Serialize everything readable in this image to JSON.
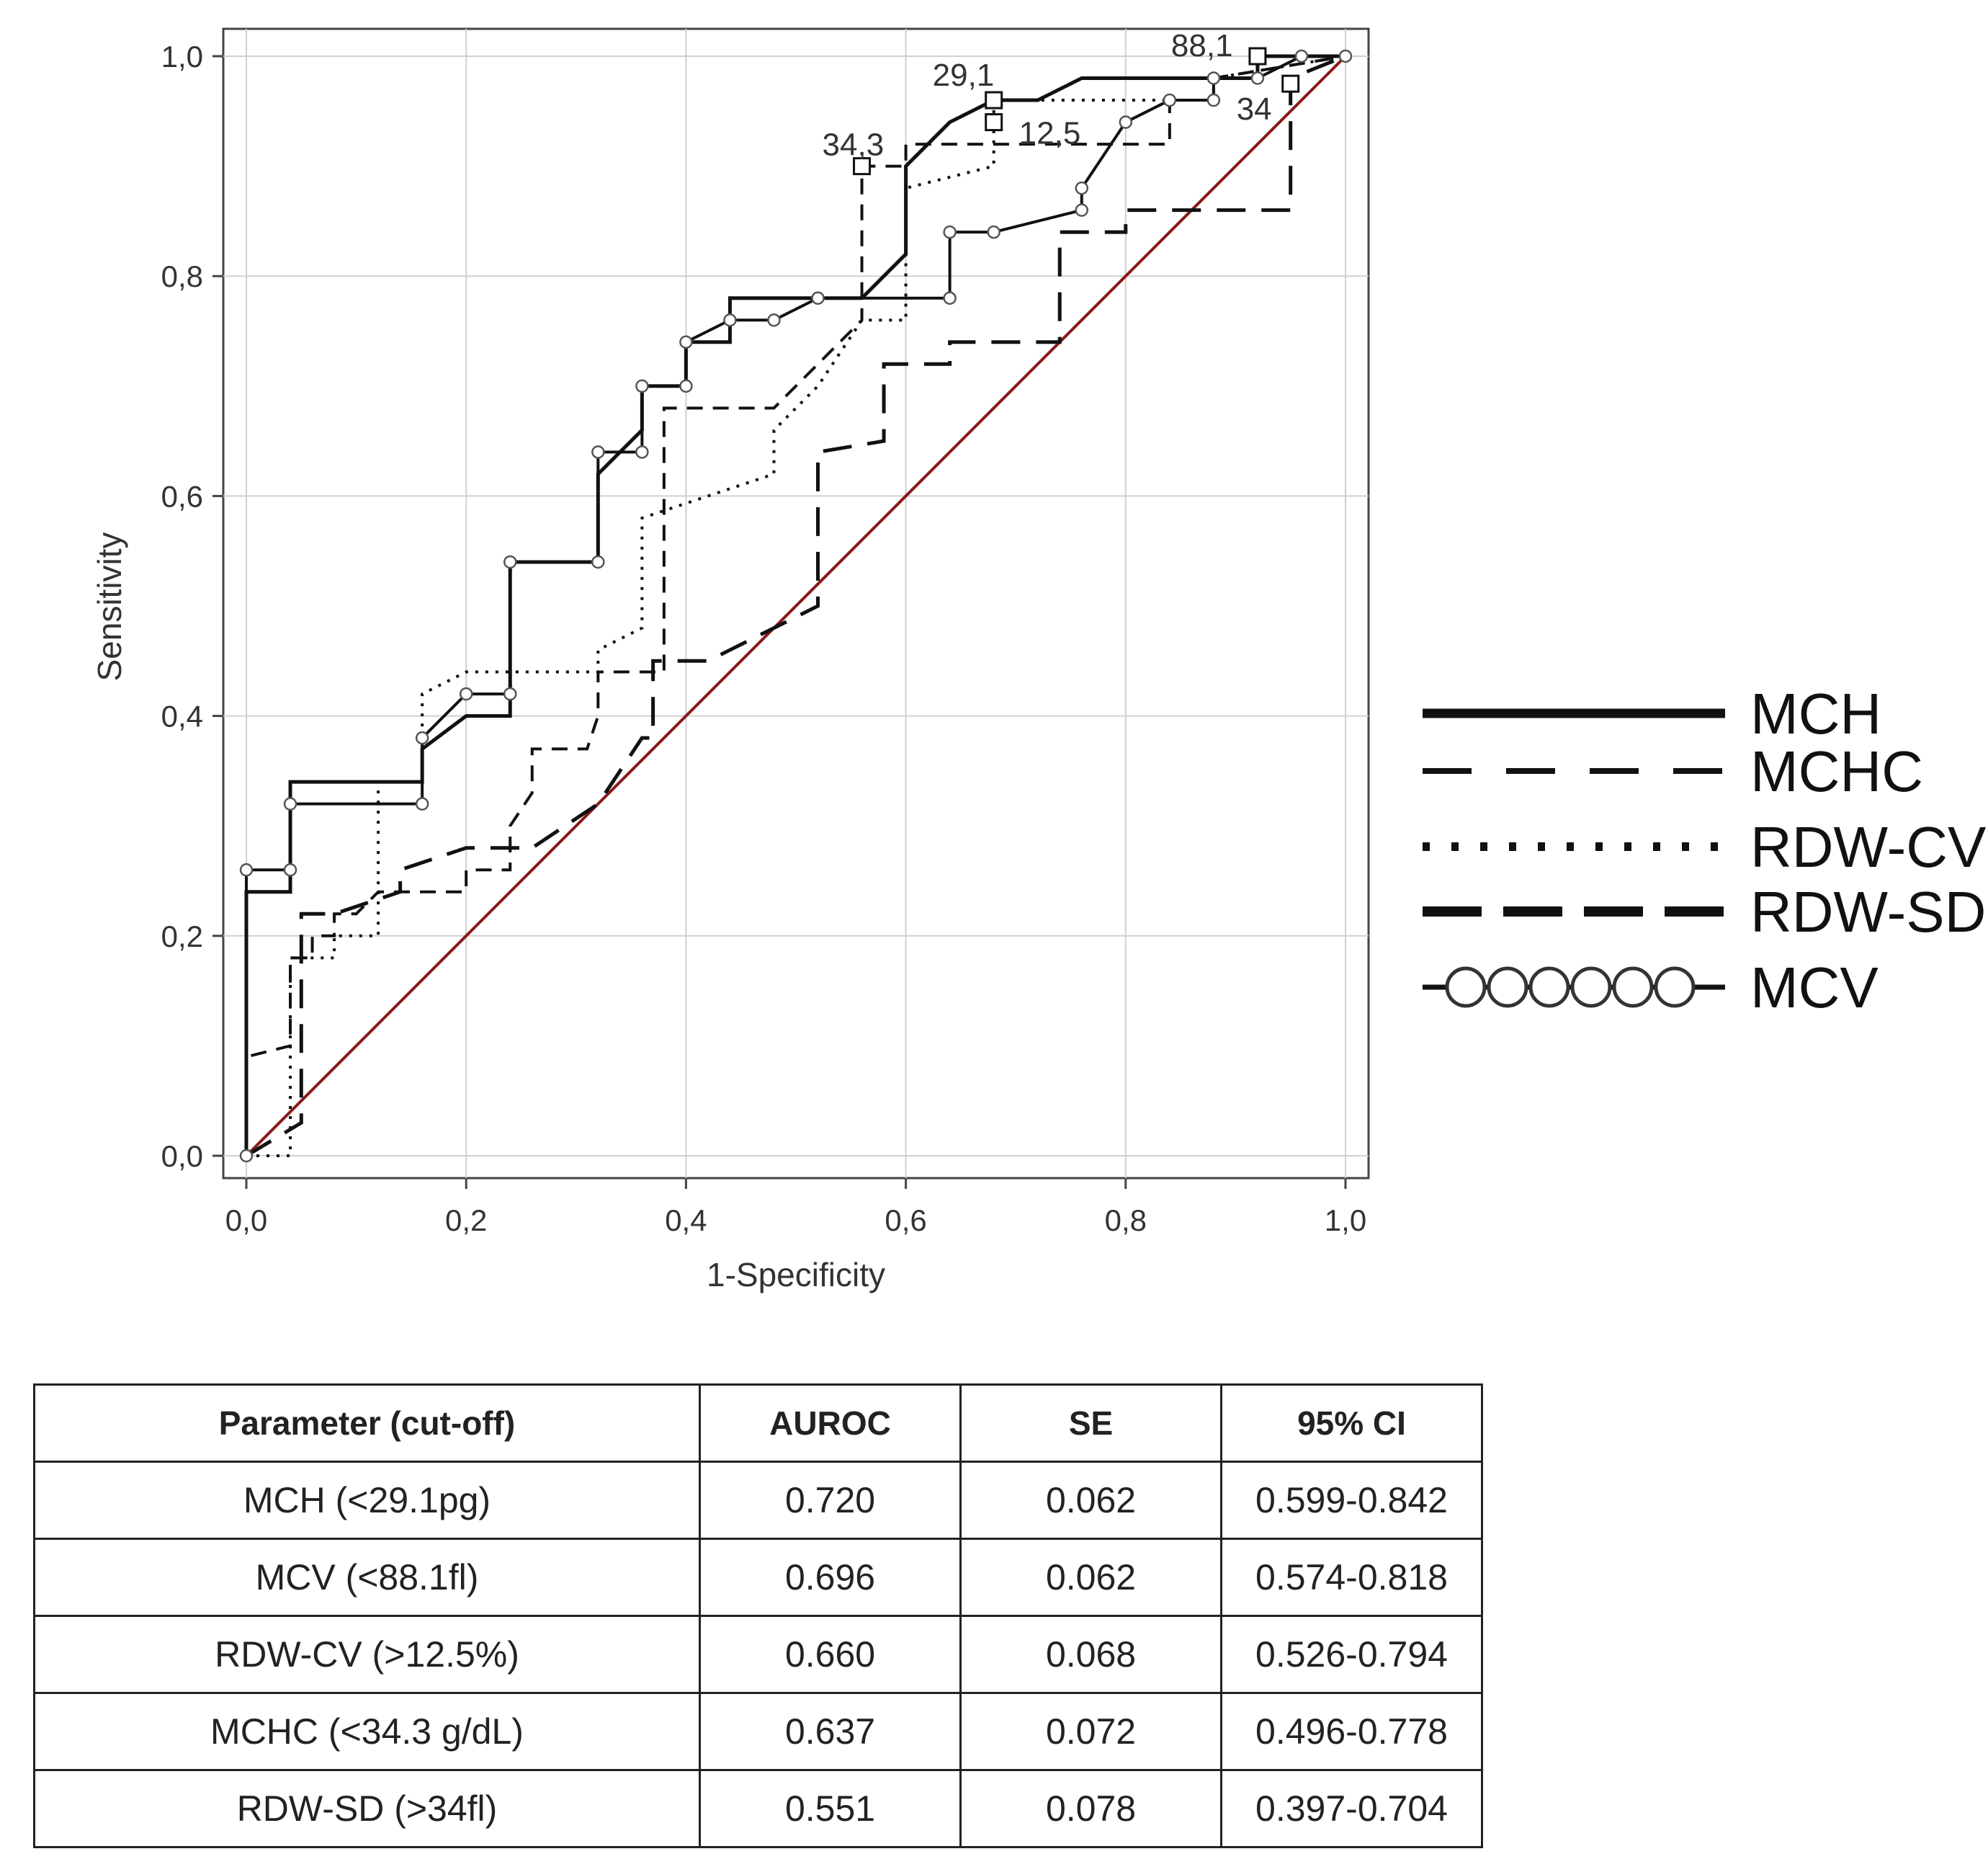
{
  "chart_data": {
    "type": "line",
    "xlabel": "1-Specificity",
    "ylabel": "Sensitivity",
    "xlim": [
      0,
      1
    ],
    "ylim": [
      0,
      1
    ],
    "xticks": [
      "0,0",
      "0,2",
      "0,4",
      "0,6",
      "0,8",
      "1,0"
    ],
    "yticks": [
      "0,0",
      "0,2",
      "0,4",
      "0,6",
      "0,8",
      "1,0"
    ],
    "grid": true,
    "legend_position": "right",
    "series": [
      {
        "name": "MCH",
        "style": "solid",
        "points": [
          [
            0,
            0
          ],
          [
            0,
            0.24
          ],
          [
            0.04,
            0.24
          ],
          [
            0.04,
            0.34
          ],
          [
            0.16,
            0.34
          ],
          [
            0.16,
            0.37
          ],
          [
            0.2,
            0.4
          ],
          [
            0.24,
            0.4
          ],
          [
            0.24,
            0.54
          ],
          [
            0.32,
            0.54
          ],
          [
            0.32,
            0.62
          ],
          [
            0.36,
            0.66
          ],
          [
            0.36,
            0.7
          ],
          [
            0.4,
            0.7
          ],
          [
            0.4,
            0.74
          ],
          [
            0.44,
            0.74
          ],
          [
            0.44,
            0.78
          ],
          [
            0.56,
            0.78
          ],
          [
            0.6,
            0.82
          ],
          [
            0.6,
            0.9
          ],
          [
            0.64,
            0.94
          ],
          [
            0.68,
            0.96
          ],
          [
            0.72,
            0.96
          ],
          [
            0.76,
            0.98
          ],
          [
            0.92,
            0.98
          ],
          [
            0.92,
            1.0
          ],
          [
            1.0,
            1.0
          ]
        ]
      },
      {
        "name": "MCHC",
        "style": "dashed",
        "points": [
          [
            0,
            0
          ],
          [
            0,
            0.09
          ],
          [
            0.04,
            0.1
          ],
          [
            0.04,
            0.18
          ],
          [
            0.06,
            0.18
          ],
          [
            0.06,
            0.2
          ],
          [
            0.08,
            0.2
          ],
          [
            0.08,
            0.22
          ],
          [
            0.1,
            0.22
          ],
          [
            0.12,
            0.24
          ],
          [
            0.2,
            0.24
          ],
          [
            0.2,
            0.26
          ],
          [
            0.24,
            0.26
          ],
          [
            0.24,
            0.3
          ],
          [
            0.26,
            0.33
          ],
          [
            0.26,
            0.37
          ],
          [
            0.31,
            0.37
          ],
          [
            0.32,
            0.4
          ],
          [
            0.32,
            0.44
          ],
          [
            0.38,
            0.44
          ],
          [
            0.38,
            0.68
          ],
          [
            0.48,
            0.68
          ],
          [
            0.52,
            0.72
          ],
          [
            0.56,
            0.76
          ],
          [
            0.56,
            0.9
          ],
          [
            0.6,
            0.9
          ],
          [
            0.6,
            0.92
          ],
          [
            0.84,
            0.92
          ],
          [
            0.84,
            0.96
          ],
          [
            0.88,
            0.96
          ],
          [
            0.88,
            0.98
          ],
          [
            1.0,
            1.0
          ]
        ]
      },
      {
        "name": "RDW-CV",
        "style": "dotted",
        "points": [
          [
            0,
            0
          ],
          [
            0.04,
            0
          ],
          [
            0.04,
            0.18
          ],
          [
            0.06,
            0.18
          ],
          [
            0.08,
            0.18
          ],
          [
            0.08,
            0.2
          ],
          [
            0.12,
            0.2
          ],
          [
            0.12,
            0.34
          ],
          [
            0.16,
            0.34
          ],
          [
            0.16,
            0.42
          ],
          [
            0.2,
            0.44
          ],
          [
            0.32,
            0.44
          ],
          [
            0.32,
            0.46
          ],
          [
            0.36,
            0.48
          ],
          [
            0.36,
            0.58
          ],
          [
            0.48,
            0.62
          ],
          [
            0.48,
            0.66
          ],
          [
            0.52,
            0.7
          ],
          [
            0.56,
            0.76
          ],
          [
            0.6,
            0.76
          ],
          [
            0.6,
            0.88
          ],
          [
            0.68,
            0.9
          ],
          [
            0.68,
            0.96
          ],
          [
            0.88,
            0.96
          ],
          [
            0.88,
            0.98
          ],
          [
            1.0,
            1.0
          ]
        ]
      },
      {
        "name": "RDW-SD",
        "style": "longdash",
        "points": [
          [
            0,
            0
          ],
          [
            0.05,
            0.03
          ],
          [
            0.05,
            0.22
          ],
          [
            0.08,
            0.22
          ],
          [
            0.14,
            0.24
          ],
          [
            0.14,
            0.26
          ],
          [
            0.2,
            0.28
          ],
          [
            0.26,
            0.28
          ],
          [
            0.32,
            0.32
          ],
          [
            0.36,
            0.38
          ],
          [
            0.37,
            0.38
          ],
          [
            0.37,
            0.45
          ],
          [
            0.42,
            0.45
          ],
          [
            0.52,
            0.5
          ],
          [
            0.52,
            0.64
          ],
          [
            0.58,
            0.65
          ],
          [
            0.58,
            0.72
          ],
          [
            0.64,
            0.72
          ],
          [
            0.64,
            0.74
          ],
          [
            0.74,
            0.74
          ],
          [
            0.74,
            0.76
          ],
          [
            0.74,
            0.84
          ],
          [
            0.8,
            0.84
          ],
          [
            0.8,
            0.86
          ],
          [
            0.95,
            0.86
          ],
          [
            0.95,
            0.98
          ],
          [
            1.0,
            1.0
          ]
        ]
      },
      {
        "name": "MCV",
        "style": "solid-circles",
        "points": [
          [
            0,
            0
          ],
          [
            0,
            0.26
          ],
          [
            0.04,
            0.26
          ],
          [
            0.04,
            0.32
          ],
          [
            0.16,
            0.32
          ],
          [
            0.16,
            0.38
          ],
          [
            0.2,
            0.42
          ],
          [
            0.24,
            0.42
          ],
          [
            0.24,
            0.54
          ],
          [
            0.32,
            0.54
          ],
          [
            0.32,
            0.64
          ],
          [
            0.36,
            0.64
          ],
          [
            0.36,
            0.7
          ],
          [
            0.4,
            0.7
          ],
          [
            0.4,
            0.74
          ],
          [
            0.44,
            0.76
          ],
          [
            0.48,
            0.76
          ],
          [
            0.52,
            0.78
          ],
          [
            0.64,
            0.78
          ],
          [
            0.64,
            0.84
          ],
          [
            0.68,
            0.84
          ],
          [
            0.76,
            0.86
          ],
          [
            0.76,
            0.88
          ],
          [
            0.8,
            0.94
          ],
          [
            0.84,
            0.96
          ],
          [
            0.88,
            0.96
          ],
          [
            0.88,
            0.98
          ],
          [
            0.92,
            0.98
          ],
          [
            0.96,
            1.0
          ],
          [
            1.0,
            1.0
          ]
        ]
      }
    ],
    "reference_line": {
      "points": [
        [
          0,
          0
        ],
        [
          1,
          1
        ]
      ],
      "color": "#8b1a1a"
    },
    "cutoff_labels": [
      {
        "text": "29,1",
        "x": 0.68,
        "y": 0.96
      },
      {
        "text": "12,5",
        "x": 0.68,
        "y": 0.94
      },
      {
        "text": "34,3",
        "x": 0.56,
        "y": 0.9
      },
      {
        "text": "88,1",
        "x": 0.92,
        "y": 1.0
      },
      {
        "text": "34",
        "x": 0.95,
        "y": 0.975
      }
    ],
    "legend": [
      "MCH",
      "MCHC",
      "RDW-CV",
      "RDW-SD",
      "MCV"
    ]
  },
  "table": {
    "headers": [
      "Parameter (cut-off)",
      "AUROC",
      "SE",
      "95% CI"
    ],
    "rows": [
      [
        "MCH (<29.1pg)",
        "0.720",
        "0.062",
        "0.599-0.842"
      ],
      [
        "MCV (<88.1fl)",
        "0.696",
        "0.062",
        "0.574-0.818"
      ],
      [
        "RDW-CV (>12.5%)",
        "0.660",
        "0.068",
        "0.526-0.794"
      ],
      [
        "MCHC (<34.3 g/dL)",
        "0.637",
        "0.072",
        "0.496-0.778"
      ],
      [
        "RDW-SD (>34fl)",
        "0.551",
        "0.078",
        "0.397-0.704"
      ]
    ]
  }
}
